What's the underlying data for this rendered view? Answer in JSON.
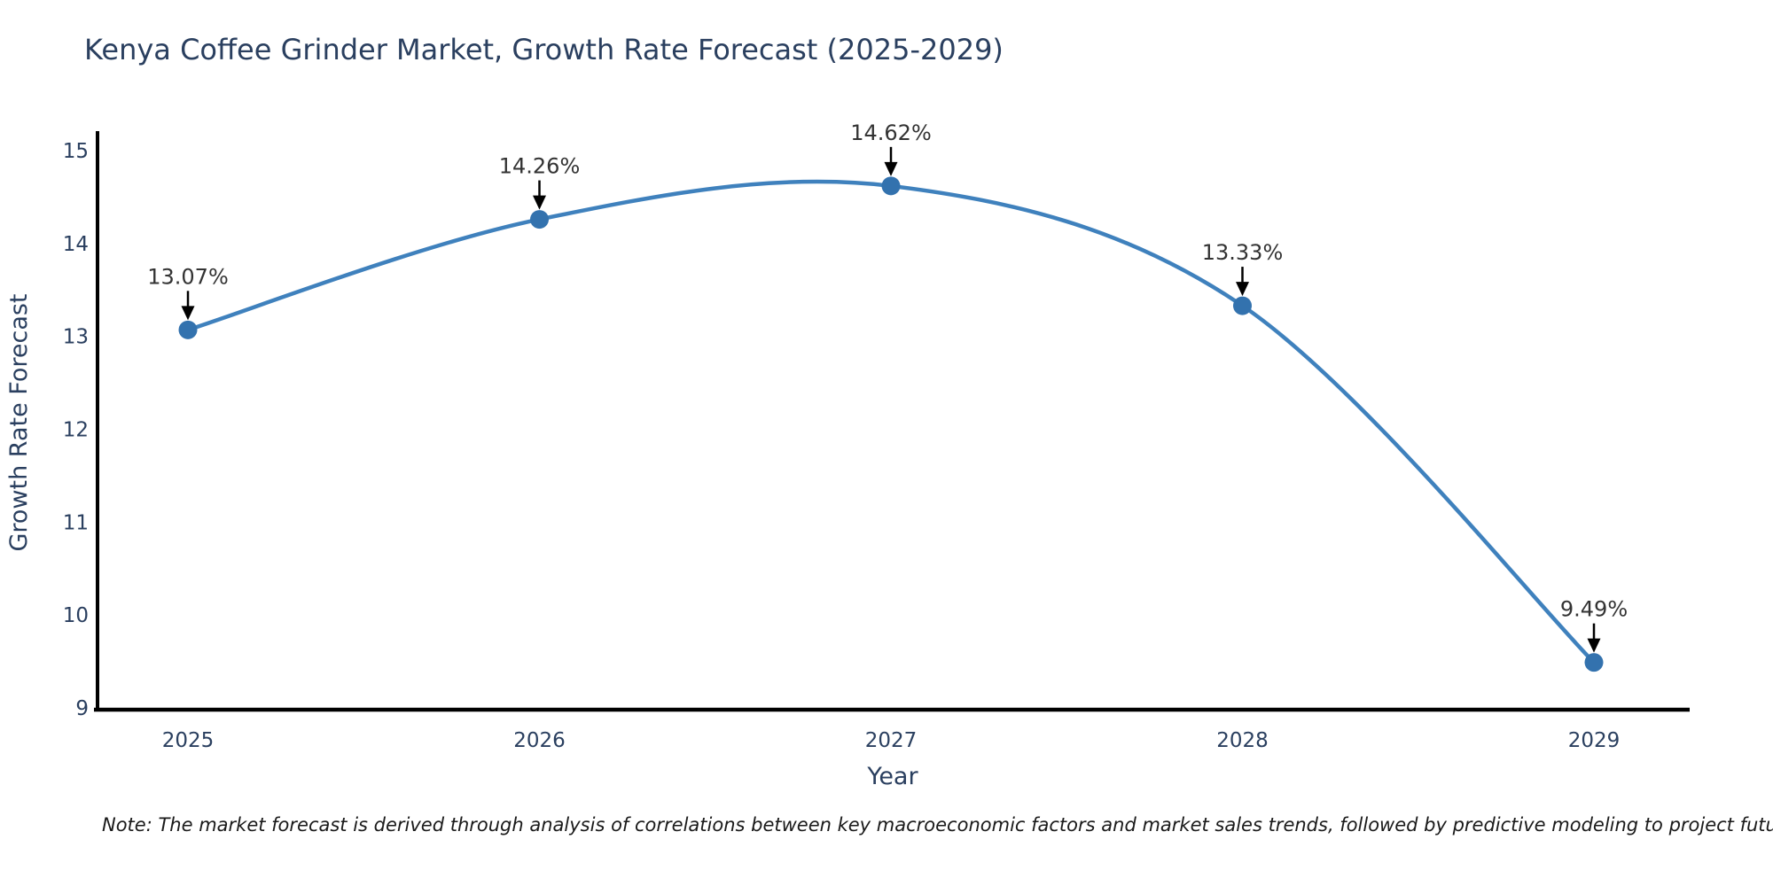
{
  "chart_data": {
    "type": "line",
    "title": "Kenya Coffee Grinder Market, Growth Rate Forecast (2025-2029)",
    "xlabel": "Year",
    "ylabel": "Growth Rate Forecast",
    "x": [
      2025,
      2026,
      2027,
      2028,
      2029
    ],
    "series": [
      {
        "name": "Growth Rate Forecast",
        "values": [
          13.07,
          14.26,
          14.62,
          13.33,
          9.49
        ],
        "point_labels": [
          "13.07%",
          "14.26%",
          "14.62%",
          "13.33%",
          "9.49%"
        ]
      }
    ],
    "ylim": [
      9,
      15
    ],
    "yticks": [
      9,
      10,
      11,
      12,
      13,
      14,
      15
    ],
    "xticks": [
      "2025",
      "2026",
      "2027",
      "2028",
      "2029"
    ],
    "grid": false,
    "legend": "none",
    "line_shape": "spline",
    "annotations_style": "value label above point with downward black arrow",
    "colors": {
      "line": "#3f81bd",
      "marker": "#3372ae",
      "axis": "#000000",
      "tick_label": "#2a3f5f",
      "title": "#2a3f5f",
      "annotation_text": "#333333",
      "arrow": "#000000",
      "background": "#ffffff"
    }
  },
  "note": "Note: The market forecast is derived through analysis of correlations between key macroeconomic factors and market sales trends, followed by predictive modeling to project future sales"
}
